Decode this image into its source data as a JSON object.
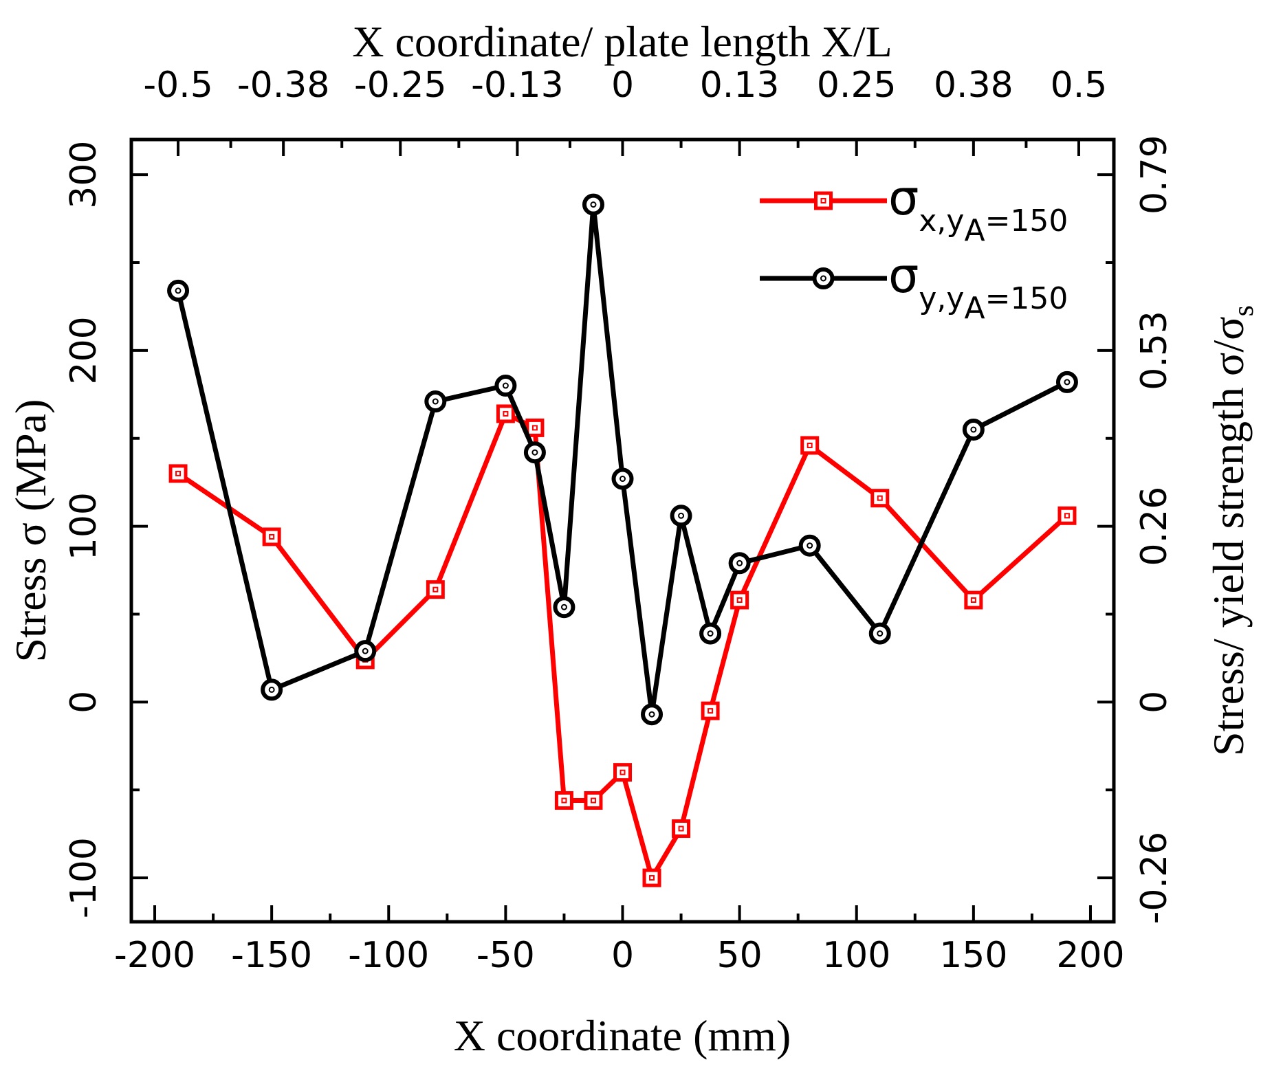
{
  "chart_data": {
    "type": "line",
    "x_axis": {
      "label": "X coordinate (mm)",
      "range": [
        -210,
        210
      ],
      "ticks": [
        -200,
        -150,
        -100,
        -50,
        0,
        50,
        100,
        150,
        200
      ],
      "tick_labels": [
        "-200",
        "-150",
        "-100",
        "-50",
        "0",
        "50",
        "100",
        "150",
        "200"
      ]
    },
    "top_axis": {
      "label": "X coordinate/ plate length X/L",
      "ticks": [
        -0.5,
        -0.38,
        -0.25,
        -0.13,
        0,
        0.13,
        0.25,
        0.38,
        0.5
      ],
      "tick_labels": [
        "-0.5",
        "-0.38",
        "-0.25",
        "-0.13",
        "0",
        "0.13",
        "0.25",
        "0.38",
        "0.5"
      ],
      "tick_positions_mm": [
        -190,
        -145,
        -95,
        -45,
        0,
        50,
        100,
        150,
        195
      ]
    },
    "y_axis": {
      "label": "Stress σ (MPa)",
      "range": [
        -125,
        320
      ],
      "ticks": [
        -100,
        0,
        100,
        200,
        300
      ],
      "tick_labels": [
        "-100",
        "0",
        "100",
        "200",
        "300"
      ]
    },
    "right_axis": {
      "label_main": "Stress/ yield strength σ/σ",
      "label_sub": "s",
      "ticks": [
        -0.26,
        0,
        0.26,
        0.53,
        0.79
      ],
      "tick_labels": [
        "-0.26",
        "0",
        "0.26",
        "0.53",
        "0.79"
      ],
      "tick_positions_mpa": [
        -100,
        0,
        100,
        200,
        300
      ]
    },
    "series": [
      {
        "name": "σx,yA=150",
        "legend_symbol": "σ",
        "legend_sub": "x,y",
        "legend_subsub": "A",
        "legend_tail": "=150",
        "color": "#ff0000",
        "marker": "square",
        "x": [
          -190,
          -150,
          -110,
          -80,
          -50,
          -37.5,
          -25,
          -12.5,
          0,
          12.5,
          25,
          37.5,
          50,
          80,
          110,
          150,
          190
        ],
        "y": [
          130,
          94,
          24,
          64,
          164,
          156,
          -56,
          -56,
          -40,
          -100,
          -72,
          -5,
          58,
          146,
          116,
          58,
          106
        ]
      },
      {
        "name": "σy,yA=150",
        "legend_symbol": "σ",
        "legend_sub": "y,y",
        "legend_subsub": "A",
        "legend_tail": "=150",
        "color": "#000000",
        "marker": "circle",
        "x": [
          -190,
          -150,
          -110,
          -80,
          -50,
          -37.5,
          -25,
          -12.5,
          0,
          12.5,
          25,
          37.5,
          50,
          80,
          110,
          150,
          190
        ],
        "y": [
          234,
          7,
          29,
          171,
          180,
          142,
          54,
          283,
          127,
          -7,
          106,
          39,
          79,
          89,
          39,
          155,
          182
        ]
      }
    ]
  }
}
